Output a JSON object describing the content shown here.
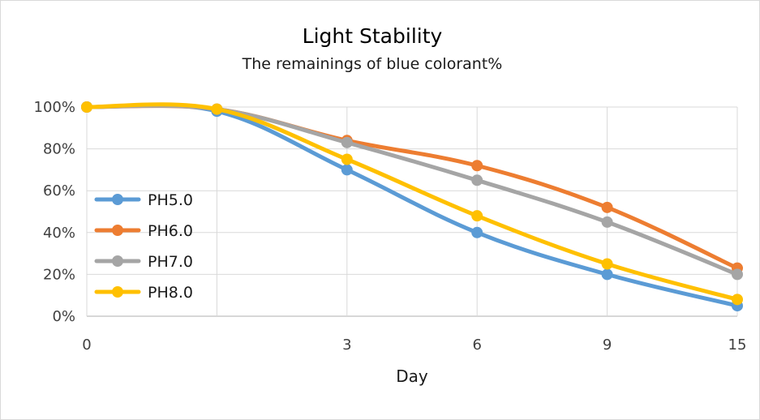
{
  "chart_data": {
    "type": "line",
    "title": "Light Stability",
    "subtitle": "The remainings of blue colorant%",
    "xlabel": "Day",
    "ylabel": "",
    "x": [
      0,
      1,
      3,
      6,
      9,
      15
    ],
    "x_tick_labels": [
      "0",
      "",
      "3",
      "6",
      "9",
      "15"
    ],
    "y_ticks": [
      "0%",
      "20%",
      "40%",
      "60%",
      "80%",
      "100%"
    ],
    "ylim": [
      0,
      100
    ],
    "grid": true,
    "legend_position": "left",
    "series": [
      {
        "name": "PH5.0",
        "color": "#5b9bd5",
        "values": [
          100,
          98,
          70,
          40,
          20,
          5
        ]
      },
      {
        "name": "PH6.0",
        "color": "#ed7d31",
        "values": [
          100,
          99,
          84,
          72,
          52,
          23
        ]
      },
      {
        "name": "PH7.0",
        "color": "#a5a5a5",
        "values": [
          100,
          99,
          83,
          65,
          45,
          20
        ]
      },
      {
        "name": "PH8.0",
        "color": "#ffc000",
        "values": [
          100,
          99,
          75,
          48,
          25,
          8
        ]
      }
    ]
  }
}
